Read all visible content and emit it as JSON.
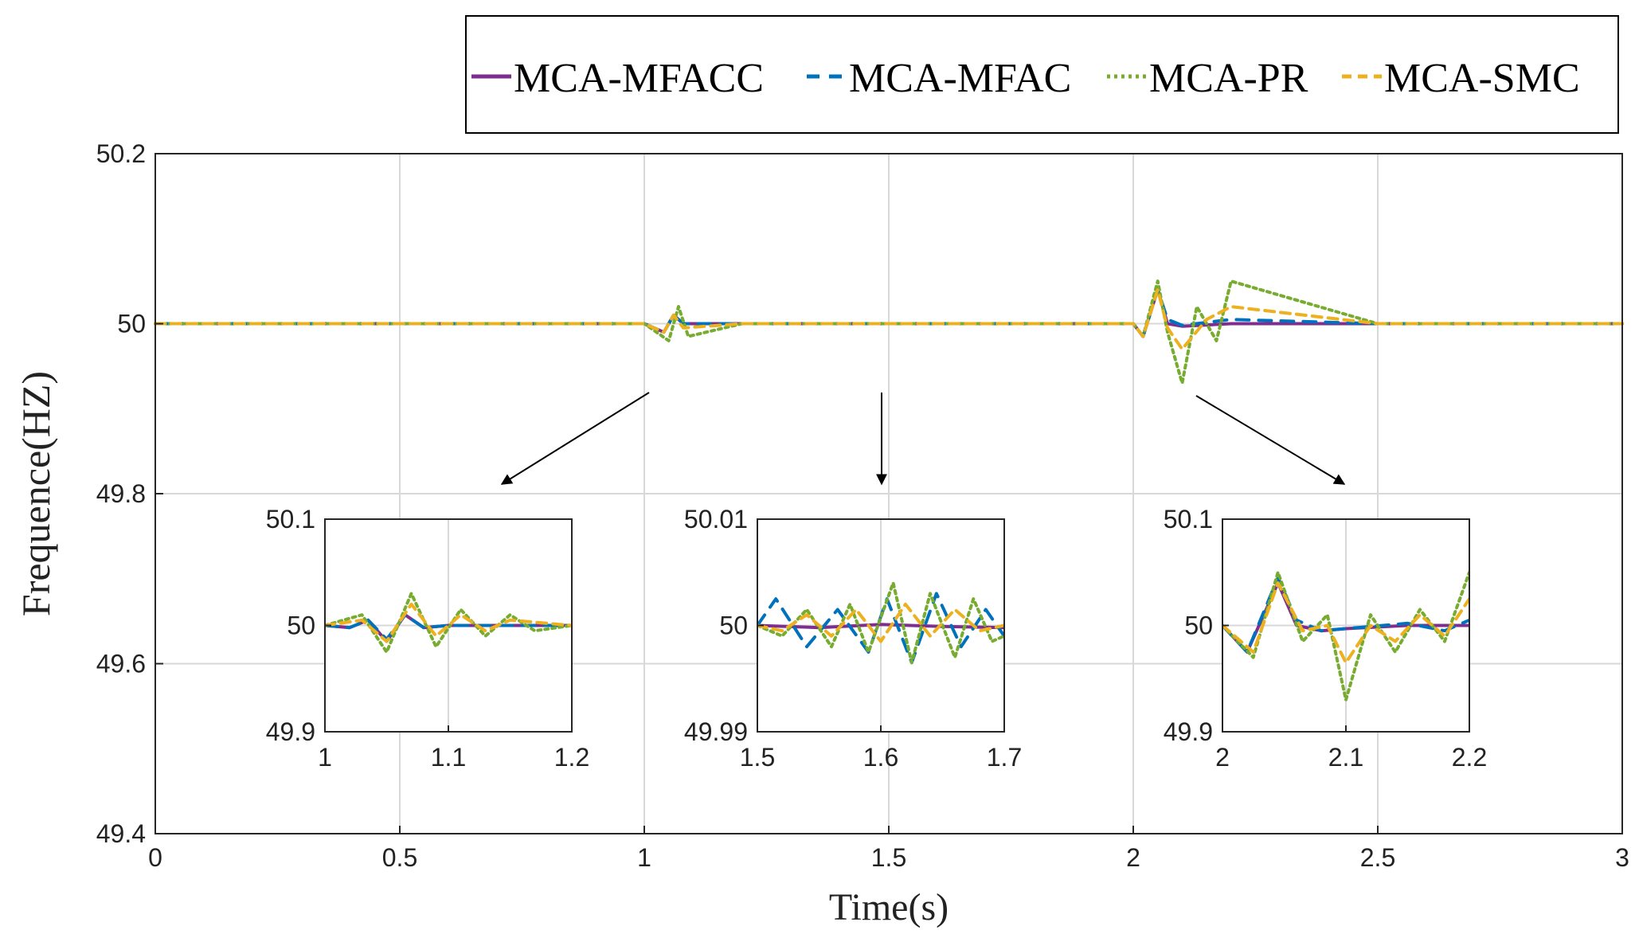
{
  "chart_data": [
    {
      "type": "line",
      "xlabel": "Time(s)",
      "ylabel": "Frequence(HZ)",
      "xlim": [
        0,
        3
      ],
      "ylim": [
        49.4,
        50.2
      ],
      "xticks": [
        "0",
        "0.5",
        "1",
        "1.5",
        "2",
        "2.5",
        "3"
      ],
      "yticks": [
        "49.4",
        "49.6",
        "49.8",
        "50",
        "50.2"
      ],
      "grid": true,
      "legend_position": "top (outside, above plot)",
      "legend": [
        "MCA-MFACC",
        "MCA-MFAC",
        "MCA-PR",
        "MCA-SMC"
      ],
      "series": [
        {
          "name": "MCA-MFACC",
          "style": "solid",
          "color": "#7e2f8e",
          "x": [
            0,
            0.5,
            1.0,
            1.04,
            1.06,
            1.08,
            1.2,
            1.5,
            2.0,
            2.02,
            2.05,
            2.07,
            2.1,
            2.2,
            2.5,
            3.0
          ],
          "y": [
            50.0,
            50.0,
            50.0,
            49.99,
            50.01,
            50.0,
            50.0,
            50.0,
            50.0,
            49.985,
            50.04,
            50.0,
            49.997,
            50.0,
            50.0,
            50.0
          ]
        },
        {
          "name": "MCA-MFAC",
          "style": "dashed",
          "color": "#0072bd",
          "x": [
            0,
            0.5,
            1.0,
            1.04,
            1.06,
            1.08,
            1.2,
            1.5,
            2.0,
            2.02,
            2.05,
            2.07,
            2.1,
            2.2,
            2.5,
            3.0
          ],
          "y": [
            50.0,
            50.0,
            50.0,
            49.99,
            50.01,
            50.0,
            50.0,
            50.0,
            50.0,
            49.985,
            50.04,
            50.005,
            49.998,
            50.005,
            50.0,
            50.0
          ]
        },
        {
          "name": "MCA-PR",
          "style": "dotted",
          "color": "#77ac30",
          "x": [
            0,
            0.5,
            1.0,
            1.05,
            1.07,
            1.09,
            1.2,
            1.5,
            2.0,
            2.02,
            2.05,
            2.07,
            2.1,
            2.13,
            2.17,
            2.2,
            2.5,
            3.0
          ],
          "y": [
            50.0,
            50.0,
            50.0,
            49.98,
            50.02,
            49.985,
            50.0,
            50.0,
            50.0,
            49.985,
            50.05,
            49.99,
            49.93,
            50.02,
            49.98,
            50.05,
            50.0,
            50.0
          ]
        },
        {
          "name": "MCA-SMC",
          "style": "dashed",
          "color": "#edb120",
          "x": [
            0,
            0.5,
            1.0,
            1.04,
            1.06,
            1.08,
            1.2,
            1.5,
            2.0,
            2.02,
            2.05,
            2.07,
            2.1,
            2.15,
            2.2,
            2.5,
            3.0
          ],
          "y": [
            50.0,
            50.0,
            50.0,
            49.99,
            50.01,
            49.995,
            50.0,
            50.0,
            50.0,
            49.985,
            50.04,
            49.995,
            49.97,
            50.005,
            50.02,
            50.0,
            50.0
          ]
        }
      ]
    },
    {
      "type": "line",
      "inset": "left",
      "xlim": [
        1,
        1.2
      ],
      "ylim": [
        49.9,
        50.1
      ],
      "xticks": [
        "1",
        "1.1",
        "1.2"
      ],
      "yticks": [
        "49.9",
        "50",
        "50.1"
      ],
      "series": [
        {
          "name": "MCA-MFACC",
          "x": [
            1.0,
            1.02,
            1.035,
            1.05,
            1.065,
            1.08,
            1.1,
            1.2
          ],
          "y": [
            50.0,
            49.998,
            50.005,
            49.985,
            50.01,
            49.998,
            50.0,
            50.0
          ]
        },
        {
          "name": "MCA-MFAC",
          "x": [
            1.0,
            1.02,
            1.035,
            1.05,
            1.065,
            1.08,
            1.1,
            1.2
          ],
          "y": [
            50.0,
            49.998,
            50.005,
            49.987,
            50.01,
            49.998,
            50.0,
            50.0
          ]
        },
        {
          "name": "MCA-PR",
          "x": [
            1.0,
            1.03,
            1.05,
            1.07,
            1.09,
            1.11,
            1.13,
            1.15,
            1.17,
            1.2
          ],
          "y": [
            50.0,
            50.01,
            49.975,
            50.03,
            49.98,
            50.015,
            49.99,
            50.01,
            49.995,
            50.0
          ]
        },
        {
          "name": "MCA-SMC",
          "x": [
            1.0,
            1.03,
            1.05,
            1.07,
            1.09,
            1.11,
            1.13,
            1.15,
            1.2
          ],
          "y": [
            50.0,
            50.005,
            49.985,
            50.02,
            49.99,
            50.01,
            49.995,
            50.005,
            50.0
          ]
        }
      ]
    },
    {
      "type": "line",
      "inset": "middle",
      "xlim": [
        1.5,
        1.7
      ],
      "ylim": [
        49.99,
        50.01
      ],
      "xticks": [
        "1.5",
        "1.6",
        "1.7"
      ],
      "yticks": [
        "49.99",
        "50",
        "50.01"
      ],
      "series": [
        {
          "name": "MCA-MFACC",
          "x": [
            1.5,
            1.55,
            1.6,
            1.65,
            1.7
          ],
          "y": [
            50.0,
            49.9998,
            50.0001,
            49.9999,
            49.9998
          ]
        },
        {
          "name": "MCA-MFAC",
          "x": [
            1.5,
            1.515,
            1.54,
            1.565,
            1.59,
            1.605,
            1.625,
            1.645,
            1.665,
            1.685,
            1.7
          ],
          "y": [
            50.0,
            50.0025,
            49.998,
            50.0015,
            49.9975,
            50.0025,
            49.9965,
            50.003,
            49.998,
            50.0015,
            49.999
          ]
        },
        {
          "name": "MCA-PR",
          "x": [
            1.5,
            1.52,
            1.54,
            1.56,
            1.575,
            1.59,
            1.61,
            1.625,
            1.64,
            1.66,
            1.675,
            1.69,
            1.7
          ],
          "y": [
            50.0,
            49.999,
            50.0015,
            49.998,
            50.002,
            49.9975,
            50.004,
            49.9965,
            50.003,
            49.997,
            50.0025,
            49.9985,
            49.999
          ]
        },
        {
          "name": "MCA-SMC",
          "x": [
            1.5,
            1.52,
            1.54,
            1.56,
            1.58,
            1.6,
            1.62,
            1.64,
            1.66,
            1.68,
            1.7
          ],
          "y": [
            50.0,
            49.9995,
            50.001,
            49.999,
            50.0015,
            49.9985,
            50.002,
            49.999,
            50.0015,
            49.9995,
            50.0
          ]
        }
      ]
    },
    {
      "type": "line",
      "inset": "right",
      "xlim": [
        2,
        2.2
      ],
      "ylim": [
        49.9,
        50.1
      ],
      "xticks": [
        "2",
        "2.1",
        "2.2"
      ],
      "yticks": [
        "49.9",
        "50",
        "50.1"
      ],
      "series": [
        {
          "name": "MCA-MFACC",
          "x": [
            2.0,
            2.02,
            2.045,
            2.06,
            2.08,
            2.1,
            2.15,
            2.2
          ],
          "y": [
            50.0,
            49.975,
            50.04,
            50.0,
            49.995,
            49.997,
            50.0,
            50.0
          ]
        },
        {
          "name": "MCA-MFAC",
          "x": [
            2.0,
            2.02,
            2.045,
            2.06,
            2.08,
            2.1,
            2.15,
            2.18,
            2.2
          ],
          "y": [
            50.0,
            49.975,
            50.045,
            50.005,
            49.995,
            49.997,
            50.002,
            49.995,
            50.005
          ]
        },
        {
          "name": "MCA-PR",
          "x": [
            2.0,
            2.025,
            2.045,
            2.065,
            2.085,
            2.1,
            2.12,
            2.14,
            2.16,
            2.18,
            2.2
          ],
          "y": [
            50.0,
            49.97,
            50.05,
            49.985,
            50.01,
            49.93,
            50.01,
            49.975,
            50.015,
            49.985,
            50.05
          ]
        },
        {
          "name": "MCA-SMC",
          "x": [
            2.0,
            2.025,
            2.045,
            2.065,
            2.085,
            2.1,
            2.12,
            2.14,
            2.16,
            2.18,
            2.2
          ],
          "y": [
            50.0,
            49.975,
            50.04,
            49.995,
            50.0,
            49.965,
            50.0,
            49.985,
            50.01,
            49.99,
            50.025
          ]
        }
      ]
    }
  ]
}
